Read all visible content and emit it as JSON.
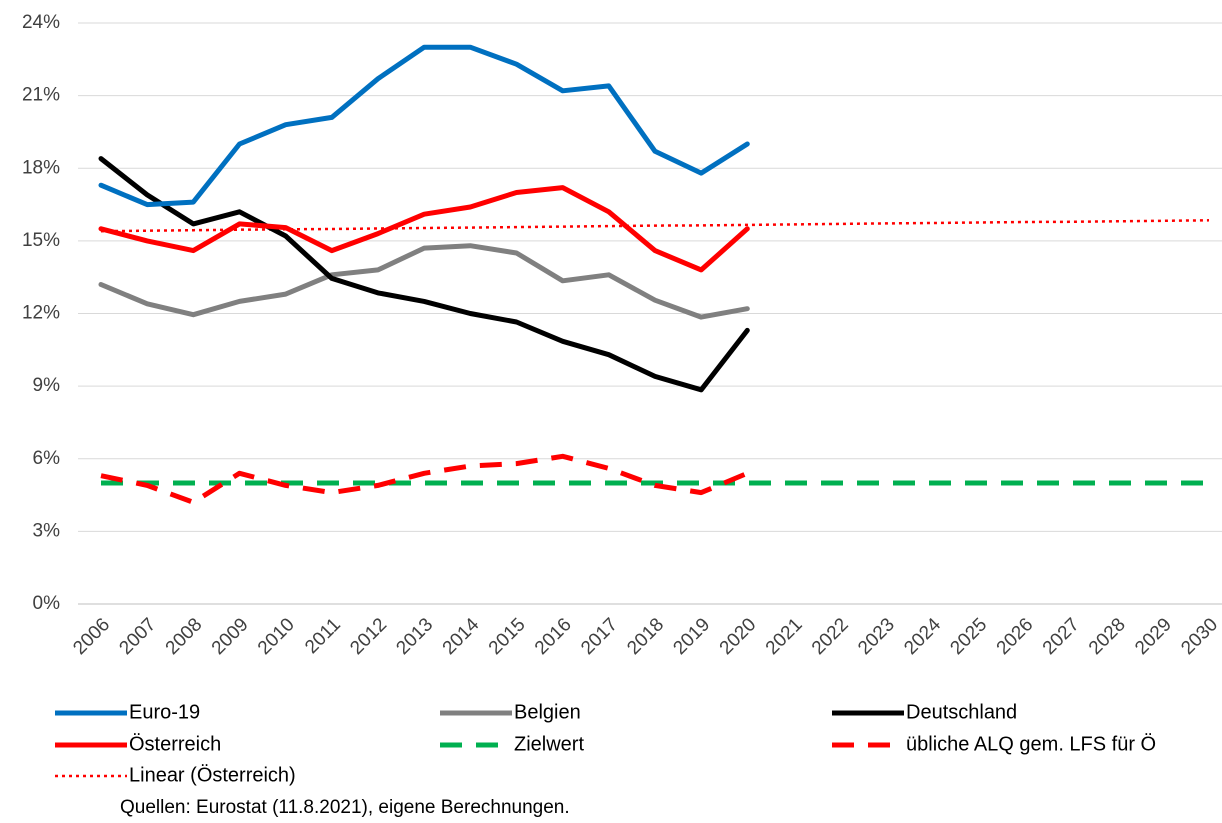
{
  "chart_data": {
    "type": "line",
    "categories": [
      "2006",
      "2007",
      "2008",
      "2009",
      "2010",
      "2011",
      "2012",
      "2013",
      "2014",
      "2015",
      "2016",
      "2017",
      "2018",
      "2019",
      "2020",
      "2021",
      "2022",
      "2023",
      "2024",
      "2025",
      "2026",
      "2027",
      "2028",
      "2029",
      "2030"
    ],
    "series": [
      {
        "name": "Euro-19",
        "color": "#0070c0",
        "dash": "solid",
        "values": [
          17.3,
          16.5,
          16.6,
          19.0,
          19.8,
          20.1,
          21.7,
          23.0,
          23.0,
          22.3,
          21.2,
          21.4,
          18.7,
          17.8,
          19.0,
          null,
          null,
          null,
          null,
          null,
          null,
          null,
          null,
          null,
          null
        ]
      },
      {
        "name": "Belgien",
        "color": "#808080",
        "dash": "solid",
        "values": [
          13.2,
          12.4,
          11.95,
          12.5,
          12.8,
          13.6,
          13.8,
          14.7,
          14.8,
          14.5,
          13.35,
          13.6,
          12.55,
          11.85,
          12.2,
          null,
          null,
          null,
          null,
          null,
          null,
          null,
          null,
          null,
          null
        ]
      },
      {
        "name": "Deutschland",
        "color": "#000000",
        "dash": "solid",
        "values": [
          18.4,
          16.9,
          15.7,
          16.2,
          15.2,
          13.45,
          12.85,
          12.5,
          12.0,
          11.65,
          10.85,
          10.3,
          9.4,
          8.85,
          11.3,
          null,
          null,
          null,
          null,
          null,
          null,
          null,
          null,
          null,
          null
        ]
      },
      {
        "name": "Österreich",
        "color": "#ff0000",
        "dash": "solid",
        "values": [
          15.5,
          15.0,
          14.6,
          15.7,
          15.55,
          14.6,
          15.3,
          16.1,
          16.4,
          17.0,
          17.2,
          16.2,
          14.6,
          13.8,
          15.5,
          null,
          null,
          null,
          null,
          null,
          null,
          null,
          null,
          null,
          null
        ]
      },
      {
        "name": "Zielwert",
        "color": "#00b050",
        "dash": "dashed",
        "values": [
          5,
          5,
          5,
          5,
          5,
          5,
          5,
          5,
          5,
          5,
          5,
          5,
          5,
          5,
          5,
          5,
          5,
          5,
          5,
          5,
          5,
          5,
          5,
          5,
          5
        ]
      },
      {
        "name": "übliche ALQ gem. LFS für Ö",
        "color": "#ff0000",
        "dash": "dashed",
        "values": [
          5.3,
          4.9,
          4.2,
          5.4,
          4.9,
          4.6,
          4.9,
          5.4,
          5.7,
          5.8,
          6.1,
          5.6,
          4.9,
          4.6,
          5.4,
          null,
          null,
          null,
          null,
          null,
          null,
          null,
          null,
          null,
          null
        ]
      },
      {
        "name": "Linear (Österreich)",
        "color": "#ff0000",
        "dash": "dotted",
        "values": [
          15.4,
          15.42,
          15.44,
          15.46,
          15.48,
          15.49,
          15.51,
          15.53,
          15.55,
          15.57,
          15.59,
          15.61,
          15.63,
          15.64,
          15.66,
          15.68,
          15.7,
          15.72,
          15.74,
          15.76,
          15.78,
          15.79,
          15.81,
          15.83,
          15.85
        ]
      }
    ],
    "ylim": [
      0,
      24
    ],
    "yticks": [
      {
        "value": 0,
        "label": "0%"
      },
      {
        "value": 3,
        "label": "3%"
      },
      {
        "value": 6,
        "label": "6%"
      },
      {
        "value": 9,
        "label": "9%"
      },
      {
        "value": 12,
        "label": "12%"
      },
      {
        "value": 15,
        "label": "15%"
      },
      {
        "value": 18,
        "label": "18%"
      },
      {
        "value": 21,
        "label": "21%"
      },
      {
        "value": 24,
        "label": "24%"
      }
    ],
    "grid": true,
    "legend": "bottom",
    "source": "Quellen: Eurostat (11.8.2021), eigene Berechnungen."
  }
}
